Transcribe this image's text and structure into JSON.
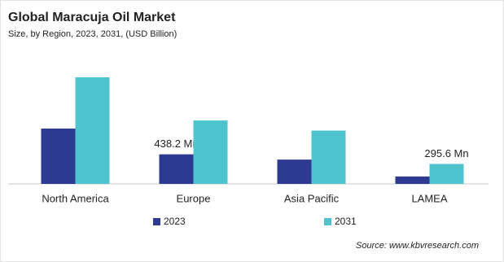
{
  "chart_data": {
    "type": "bar",
    "title": "Global Maracuja Oil Market",
    "subtitle": "Size, by Region, 2023, 2031, (USD Billion)",
    "categories": [
      "North America",
      "Europe",
      "Asia Pacific",
      "LAMEA"
    ],
    "series": [
      {
        "name": "2023",
        "color": "#2e3a91",
        "values": [
          820,
          438.2,
          360,
          110
        ],
        "value_labels": [
          null,
          "438.2 Mn",
          null,
          null
        ]
      },
      {
        "name": "2031",
        "color": "#4fc4cf",
        "values": [
          1580,
          940,
          790,
          295.6
        ],
        "value_labels": [
          null,
          null,
          null,
          "295.6 Mn"
        ]
      }
    ],
    "source": "Source: www.kbvresearch.com"
  }
}
